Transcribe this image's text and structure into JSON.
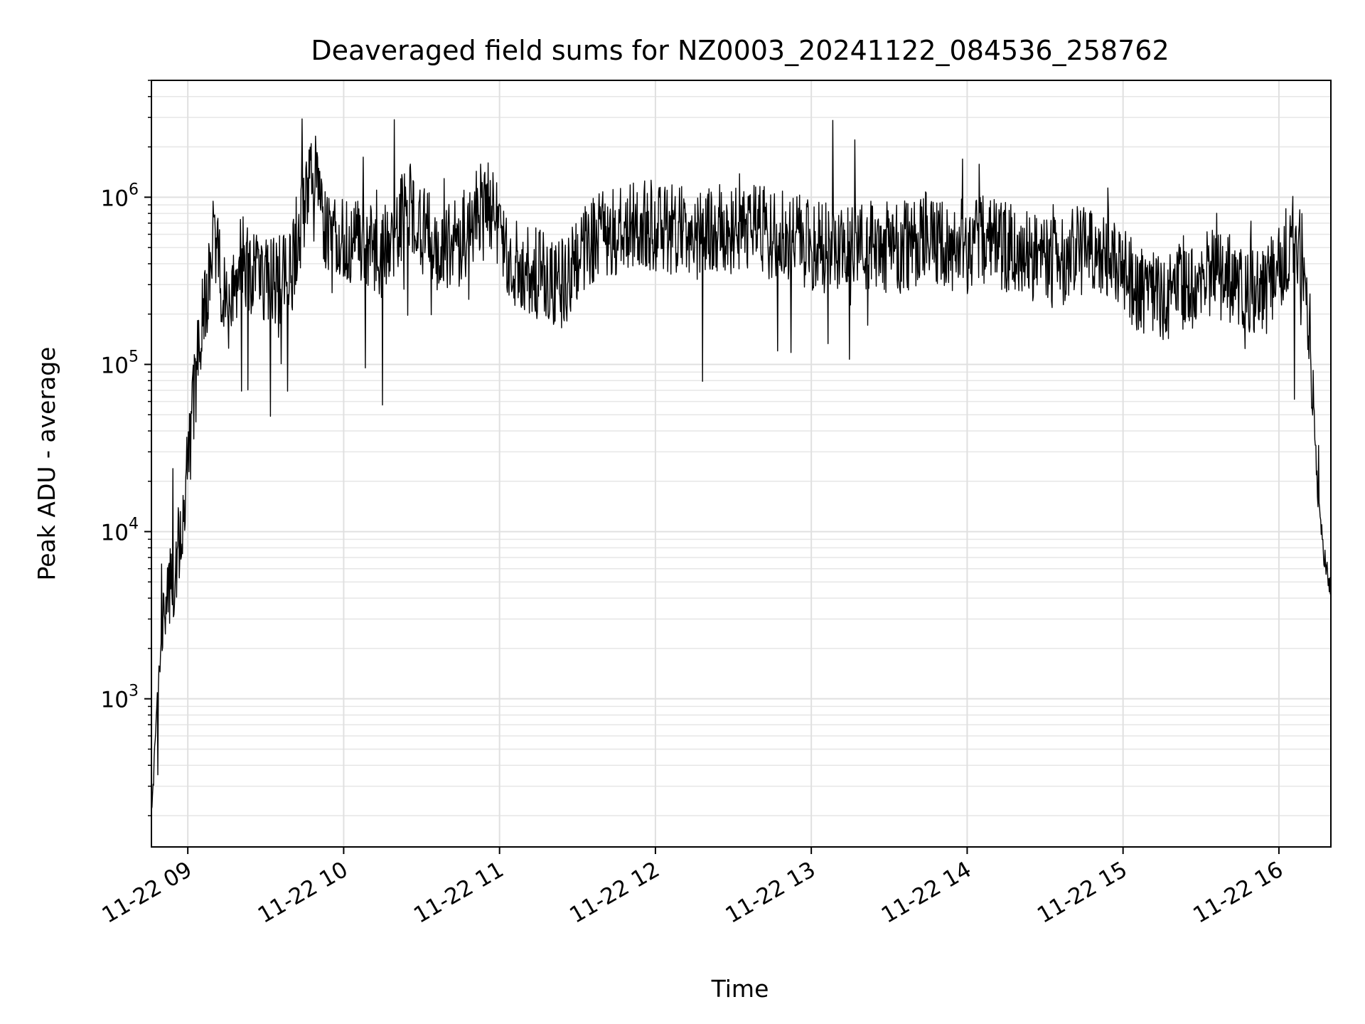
{
  "chart_data": {
    "type": "line",
    "title": "Deaveraged field sums for NZ0003_20241122_084536_258762",
    "xlabel": "Time",
    "ylabel": "Peak ADU - average",
    "x_range": [
      "2024-11-22 08:46",
      "2024-11-22 16:20"
    ],
    "y_range": [
      130,
      5000000
    ],
    "y_scale": "log",
    "grid": true,
    "line_color": "#000000",
    "x_ticks": [
      {
        "label": "11-22 09",
        "time": "2024-11-22 09:00"
      },
      {
        "label": "11-22 10",
        "time": "2024-11-22 10:00"
      },
      {
        "label": "11-22 11",
        "time": "2024-11-22 11:00"
      },
      {
        "label": "11-22 12",
        "time": "2024-11-22 12:00"
      },
      {
        "label": "11-22 13",
        "time": "2024-11-22 13:00"
      },
      {
        "label": "11-22 14",
        "time": "2024-11-22 14:00"
      },
      {
        "label": "11-22 15",
        "time": "2024-11-22 15:00"
      },
      {
        "label": "11-22 16",
        "time": "2024-11-22 16:00"
      }
    ],
    "y_ticks": [
      {
        "base": "10",
        "exp": "3",
        "value": 1000
      },
      {
        "base": "10",
        "exp": "4",
        "value": 10000
      },
      {
        "base": "10",
        "exp": "5",
        "value": 100000
      },
      {
        "base": "10",
        "exp": "6",
        "value": 1000000
      }
    ],
    "series": [
      {
        "x": [
          "2024-11-22 08:46",
          "2024-11-22 08:49",
          "2024-11-22 08:52",
          "2024-11-22 08:55",
          "2024-11-22 08:58",
          "2024-11-22 09:01",
          "2024-11-22 09:04",
          "2024-11-22 09:07",
          "2024-11-22 09:10",
          "2024-11-22 09:15",
          "2024-11-22 09:20",
          "2024-11-22 09:30",
          "2024-11-22 09:40",
          "2024-11-22 09:48",
          "2024-11-22 09:55",
          "2024-11-22 10:05",
          "2024-11-22 10:15",
          "2024-11-22 10:25",
          "2024-11-22 10:35",
          "2024-11-22 10:45",
          "2024-11-22 10:55",
          "2024-11-22 11:05",
          "2024-11-22 11:15",
          "2024-11-22 11:25",
          "2024-11-22 11:35",
          "2024-11-22 11:45",
          "2024-11-22 11:55",
          "2024-11-22 12:05",
          "2024-11-22 12:15",
          "2024-11-22 12:25",
          "2024-11-22 12:35",
          "2024-11-22 12:45",
          "2024-11-22 12:55",
          "2024-11-22 13:05",
          "2024-11-22 13:15",
          "2024-11-22 13:25",
          "2024-11-22 13:35",
          "2024-11-22 13:45",
          "2024-11-22 13:55",
          "2024-11-22 14:05",
          "2024-11-22 14:15",
          "2024-11-22 14:25",
          "2024-11-22 14:35",
          "2024-11-22 14:45",
          "2024-11-22 14:55",
          "2024-11-22 15:05",
          "2024-11-22 15:15",
          "2024-11-22 15:25",
          "2024-11-22 15:35",
          "2024-11-22 15:45",
          "2024-11-22 15:55",
          "2024-11-22 16:02",
          "2024-11-22 16:06",
          "2024-11-22 16:10",
          "2024-11-22 16:13",
          "2024-11-22 16:15",
          "2024-11-22 16:18",
          "2024-11-22 16:20"
        ],
        "y": [
          200,
          1500,
          4000,
          6000,
          10000,
          35000,
          120000,
          250000,
          600000,
          200000,
          450000,
          300000,
          350000,
          1500000,
          500000,
          600000,
          450000,
          900000,
          500000,
          550000,
          1000000,
          400000,
          350000,
          300000,
          550000,
          600000,
          700000,
          650000,
          600000,
          650000,
          650000,
          600000,
          550000,
          500000,
          550000,
          500000,
          500000,
          600000,
          450000,
          550000,
          500000,
          450000,
          400000,
          500000,
          450000,
          300000,
          250000,
          300000,
          350000,
          300000,
          280000,
          450000,
          600000,
          400000,
          80000,
          15000,
          6000,
          4500
        ]
      }
    ]
  }
}
